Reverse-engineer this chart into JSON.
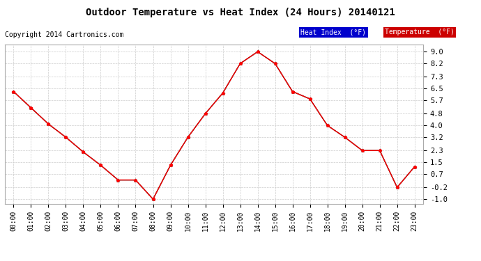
{
  "title": "Outdoor Temperature vs Heat Index (24 Hours) 20140121",
  "copyright": "Copyright 2014 Cartronics.com",
  "hours": [
    "00:00",
    "01:00",
    "02:00",
    "03:00",
    "04:00",
    "05:00",
    "06:00",
    "07:00",
    "08:00",
    "09:00",
    "10:00",
    "11:00",
    "12:00",
    "13:00",
    "14:00",
    "15:00",
    "16:00",
    "17:00",
    "18:00",
    "19:00",
    "20:00",
    "21:00",
    "22:00",
    "23:00"
  ],
  "temperature": [
    6.3,
    5.2,
    4.1,
    3.2,
    2.2,
    1.3,
    0.3,
    0.3,
    -1.0,
    1.3,
    3.2,
    4.8,
    6.2,
    8.2,
    9.0,
    8.2,
    6.3,
    5.8,
    4.0,
    3.2,
    2.3,
    2.3,
    -0.2,
    1.2
  ],
  "heat_index": [
    6.3,
    5.2,
    4.1,
    3.2,
    2.2,
    1.3,
    0.3,
    0.3,
    -1.0,
    1.3,
    3.2,
    4.8,
    6.2,
    8.2,
    9.0,
    8.2,
    6.3,
    5.8,
    4.0,
    3.2,
    2.3,
    2.3,
    -0.2,
    1.2
  ],
  "yticks": [
    -1.0,
    -0.2,
    0.7,
    1.5,
    2.3,
    3.2,
    4.0,
    4.8,
    5.7,
    6.5,
    7.3,
    8.2,
    9.0
  ],
  "ylim": [
    -1.3,
    9.5
  ],
  "bg_color": "#ffffff",
  "plot_bg_color": "#ffffff",
  "grid_color": "#cccccc",
  "line_color_temp": "#ff0000",
  "line_color_heat": "#000000",
  "marker": "*",
  "legend_heat_bg": "#0000cc",
  "legend_temp_bg": "#cc0000",
  "legend_heat_text": "Heat Index  (°F)",
  "legend_temp_text": "Temperature  (°F)"
}
